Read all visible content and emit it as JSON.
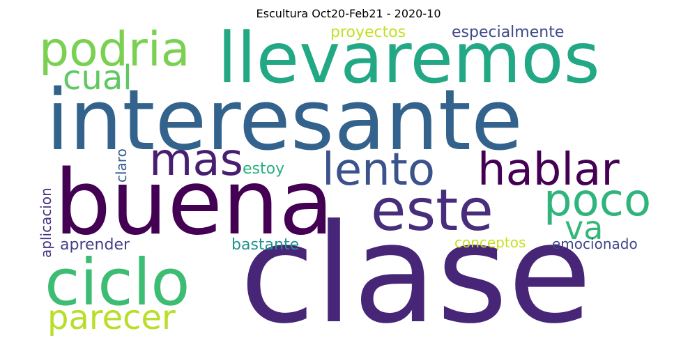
{
  "title": "Escultura  Oct20-Feb21 - 2020-10",
  "words": [
    {
      "text": "clase",
      "color": "#482677"
    },
    {
      "text": "interesante",
      "color": "#33638d"
    },
    {
      "text": "buena",
      "color": "#440154"
    },
    {
      "text": "llevaremos",
      "color": "#22a884"
    },
    {
      "text": "ciclo",
      "color": "#3dbc74"
    },
    {
      "text": "este",
      "color": "#472d7b"
    },
    {
      "text": "hablar",
      "color": "#440154"
    },
    {
      "text": "lento",
      "color": "#3b528b"
    },
    {
      "text": "podria",
      "color": "#7ad151"
    },
    {
      "text": "poco",
      "color": "#2fb47c"
    },
    {
      "text": "mas",
      "color": "#481f70"
    },
    {
      "text": "parecer",
      "color": "#b8de29"
    },
    {
      "text": "cual",
      "color": "#5ec962"
    },
    {
      "text": "va",
      "color": "#35b779"
    },
    {
      "text": "proyectos",
      "color": "#c2df23"
    },
    {
      "text": "especialmente",
      "color": "#3e4a89"
    },
    {
      "text": "estoy",
      "color": "#29af7f"
    },
    {
      "text": "aprender",
      "color": "#433e85"
    },
    {
      "text": "bastante",
      "color": "#21918c"
    },
    {
      "text": "conceptos",
      "color": "#c8e020"
    },
    {
      "text": "emocionado",
      "color": "#3f4788"
    },
    {
      "text": "claro",
      "color": "#375a8c"
    },
    {
      "text": "aplicacion",
      "color": "#46337e"
    }
  ]
}
